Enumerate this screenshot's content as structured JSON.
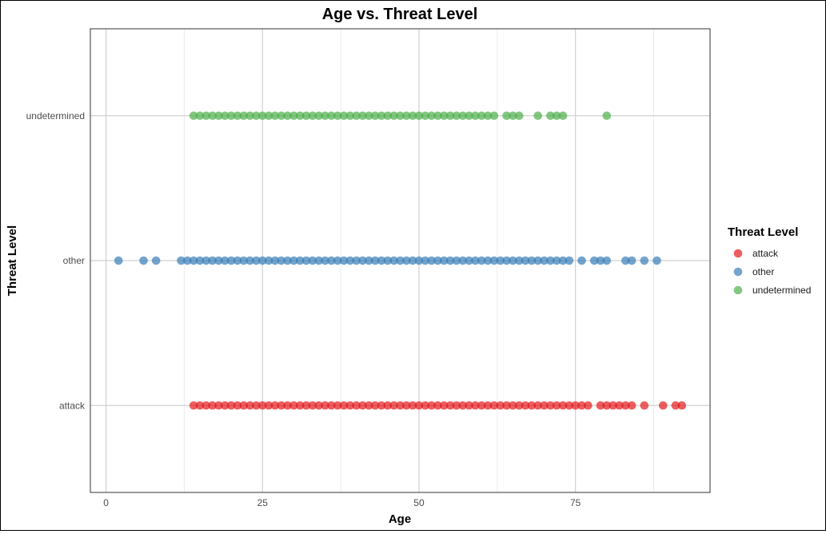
{
  "chart_data": {
    "type": "scatter",
    "title": "Age vs. Threat Level",
    "xlabel": "Age",
    "ylabel": "Threat Level",
    "xlim": [
      -2.5,
      96.5
    ],
    "x_ticks": [
      0,
      25,
      50,
      75
    ],
    "categories": [
      "attack",
      "other",
      "undetermined"
    ],
    "grid": true,
    "legend": {
      "title": "Threat Level",
      "position": "right",
      "entries": [
        "attack",
        "other",
        "undetermined"
      ]
    },
    "colors": {
      "attack": "#e41a1c",
      "other": "#377eb8",
      "undetermined": "#4daf4a"
    },
    "series": [
      {
        "name": "attack",
        "x": [
          14,
          15,
          16,
          17,
          18,
          19,
          20,
          21,
          22,
          23,
          24,
          25,
          26,
          27,
          28,
          29,
          30,
          31,
          32,
          33,
          34,
          35,
          36,
          37,
          38,
          39,
          40,
          41,
          42,
          43,
          44,
          45,
          46,
          47,
          48,
          49,
          50,
          51,
          52,
          53,
          54,
          55,
          56,
          57,
          58,
          59,
          60,
          61,
          62,
          63,
          64,
          65,
          66,
          67,
          68,
          69,
          70,
          71,
          72,
          73,
          74,
          75,
          76,
          77,
          79,
          80,
          81,
          82,
          83,
          84,
          86,
          89,
          91,
          92
        ]
      },
      {
        "name": "other",
        "x": [
          2,
          6,
          8,
          12,
          13,
          14,
          15,
          16,
          17,
          18,
          19,
          20,
          21,
          22,
          23,
          24,
          25,
          26,
          27,
          28,
          29,
          30,
          31,
          32,
          33,
          34,
          35,
          36,
          37,
          38,
          39,
          40,
          41,
          42,
          43,
          44,
          45,
          46,
          47,
          48,
          49,
          50,
          51,
          52,
          53,
          54,
          55,
          56,
          57,
          58,
          59,
          60,
          61,
          62,
          63,
          64,
          65,
          66,
          67,
          68,
          69,
          70,
          71,
          72,
          73,
          74,
          76,
          78,
          79,
          80,
          83,
          84,
          86,
          88
        ]
      },
      {
        "name": "undetermined",
        "x": [
          14,
          15,
          16,
          17,
          18,
          19,
          20,
          21,
          22,
          23,
          24,
          25,
          26,
          27,
          28,
          29,
          30,
          31,
          32,
          33,
          34,
          35,
          36,
          37,
          38,
          39,
          40,
          41,
          42,
          43,
          44,
          45,
          46,
          47,
          48,
          49,
          50,
          51,
          52,
          53,
          54,
          55,
          56,
          57,
          58,
          59,
          60,
          61,
          62,
          64,
          65,
          66,
          69,
          71,
          72,
          73,
          80
        ]
      }
    ]
  }
}
